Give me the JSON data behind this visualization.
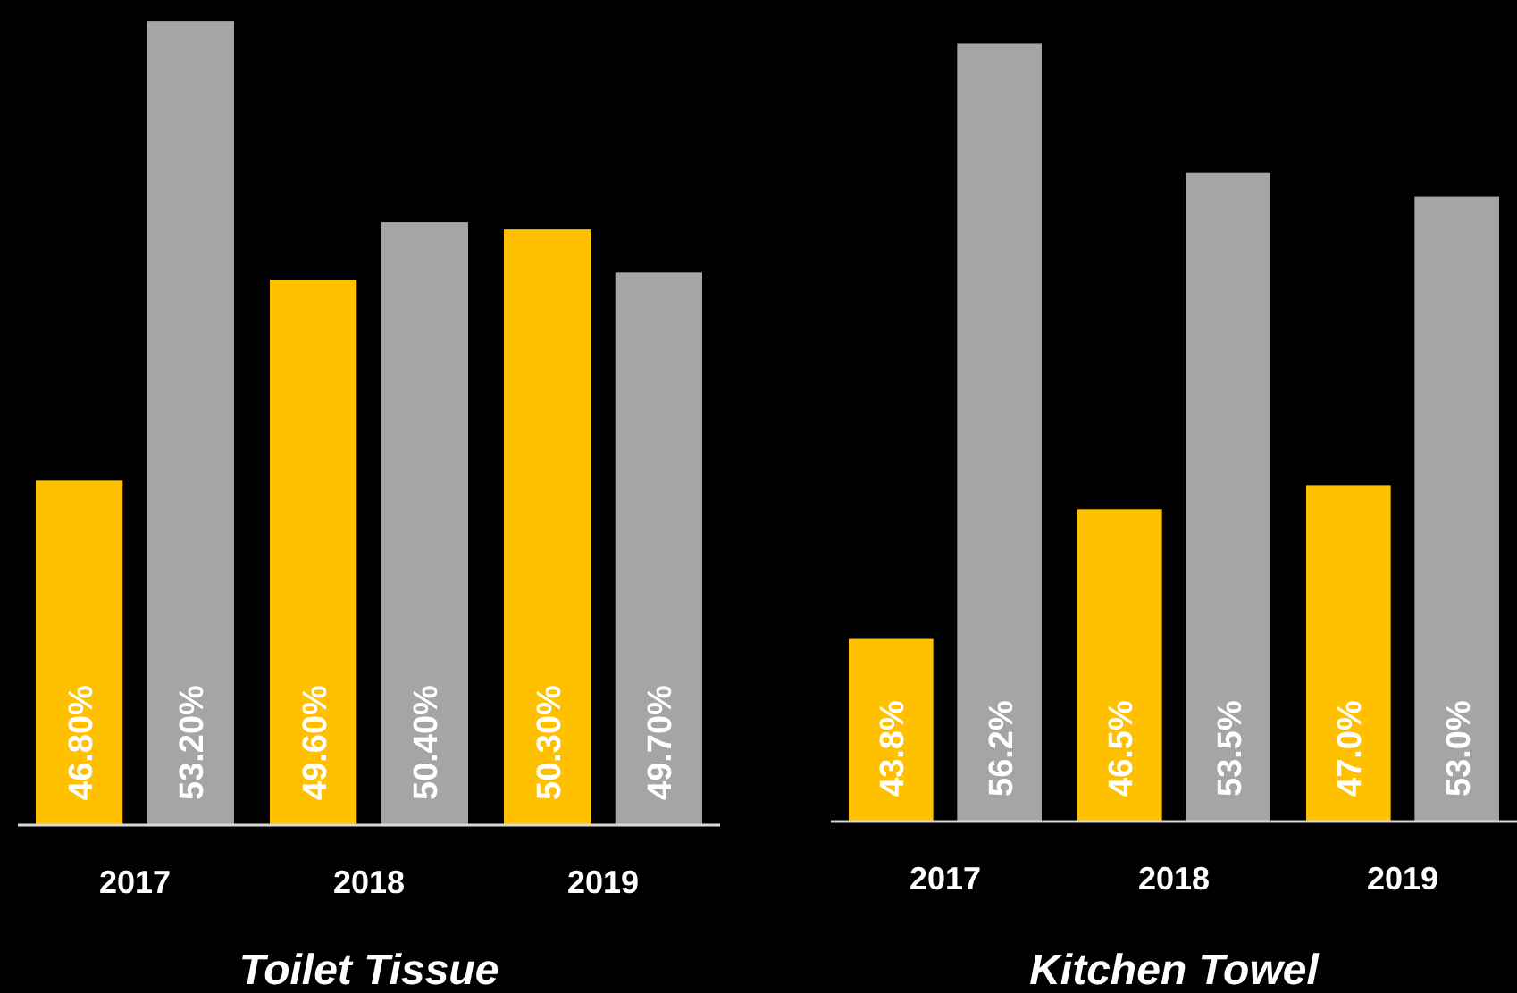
{
  "chart_data": [
    {
      "type": "bar",
      "title": "Toilet Tissue",
      "categories": [
        "2017",
        "2018",
        "2019"
      ],
      "ylim": [
        42,
        53.5
      ],
      "series": [
        {
          "color": "#ffc000",
          "values": [
            46.8,
            49.6,
            50.3
          ],
          "value_labels": [
            "46.80%",
            "49.60%",
            "50.30%"
          ]
        },
        {
          "color": "#a5a5a5",
          "values": [
            53.2,
            50.4,
            49.7
          ],
          "value_labels": [
            "53.20%",
            "50.40%",
            "49.70%"
          ]
        }
      ]
    },
    {
      "type": "bar",
      "title": "Kitchen Towel",
      "categories": [
        "2017",
        "2018",
        "2019"
      ],
      "ylim": [
        40,
        57.1
      ],
      "series": [
        {
          "color": "#ffc000",
          "values": [
            43.8,
            46.5,
            47.0
          ],
          "value_labels": [
            "43.8%",
            "46.5%",
            "47.0%"
          ]
        },
        {
          "color": "#a5a5a5",
          "values": [
            56.2,
            53.5,
            53.0
          ],
          "value_labels": [
            "56.2%",
            "53.5%",
            "53.0%"
          ]
        }
      ]
    }
  ]
}
